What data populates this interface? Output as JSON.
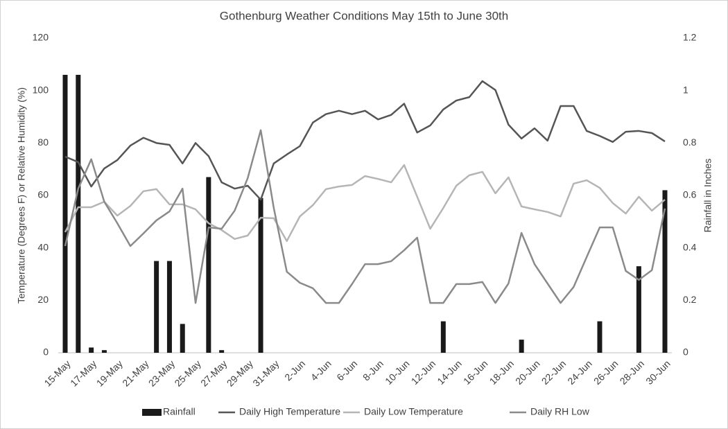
{
  "chart_data": {
    "type": "bar-line",
    "title": "Gothenburg Weather Conditions May 15th to June 30th",
    "ylabel": "Temperature (Degrees F) or Relative Humidity (%)",
    "y2label": "Rainfall in Inches",
    "categories": [
      "15-May",
      null,
      "17-May",
      null,
      "19-May",
      null,
      "21-May",
      null,
      "23-May",
      null,
      "25-May",
      null,
      "27-May",
      null,
      "29-May",
      null,
      "31-May",
      null,
      "2-Jun",
      null,
      "4-Jun",
      null,
      "6-Jun",
      null,
      "8-Jun",
      null,
      "10-Jun",
      null,
      "12-Jun",
      null,
      "14-Jun",
      null,
      "16-Jun",
      null,
      "18-Jun",
      null,
      "20-Jun",
      null,
      "22-Jun",
      null,
      "24-Jun",
      null,
      "26-Jun",
      null,
      "28-Jun",
      null,
      "30-Jun"
    ],
    "series": [
      {
        "name": "Rainfall",
        "type": "bar",
        "axis": "y2",
        "color": "#1a1a1a",
        "values": [
          1.06,
          1.06,
          0.02,
          0.01,
          0,
          0,
          0,
          0.35,
          0.35,
          0.11,
          0,
          0.67,
          0.01,
          0,
          0,
          0.59,
          0,
          0,
          0,
          0,
          0,
          0,
          0,
          0,
          0,
          0,
          0,
          0,
          0,
          0.12,
          0,
          0,
          0,
          0,
          0,
          0.05,
          0,
          0,
          0,
          0,
          0,
          0.12,
          0,
          0,
          0.33,
          0,
          0.62
        ]
      },
      {
        "name": "Daily High Temperature",
        "type": "line",
        "color": "#555555",
        "values": [
          74.8,
          72.7,
          63.4,
          70.3,
          73.5,
          79,
          82,
          80,
          79.3,
          72.2,
          80,
          75,
          65,
          62.6,
          63.7,
          58.4,
          72.2,
          75.6,
          78.8,
          87.8,
          91,
          92.3,
          91,
          92.3,
          89,
          90.7,
          95,
          84,
          86.7,
          92.8,
          96.2,
          97.5,
          103.6,
          100.2,
          87,
          81.7,
          85.6,
          80.9,
          94.1,
          94.1,
          84.6,
          82.7,
          80.4,
          84.3,
          84.6,
          83.8,
          80.6
        ]
      },
      {
        "name": "Daily Low Temperature",
        "type": "line",
        "color": "#b5b5b5",
        "values": [
          46,
          55.5,
          55.5,
          57.6,
          52.3,
          56,
          61.6,
          62.4,
          56.6,
          56.6,
          54.7,
          49.4,
          46.8,
          43.4,
          44.7,
          51.5,
          51.3,
          42.6,
          52,
          56.3,
          62.4,
          63.4,
          64,
          67.4,
          66.3,
          65,
          71.6,
          59.5,
          47.3,
          55.2,
          63.7,
          67.7,
          69,
          60.8,
          66.9,
          55.8,
          54.7,
          53.7,
          52,
          64.5,
          65.8,
          62.9,
          57.1,
          53.1,
          59.5,
          54.2,
          58.4
        ]
      },
      {
        "name": "Daily RH Low",
        "type": "line",
        "color": "#8a8a8a",
        "values": [
          40.7,
          62.6,
          73.8,
          57.6,
          49.4,
          40.7,
          45.5,
          50.5,
          53.9,
          62.6,
          19,
          47.8,
          47.3,
          54.2,
          66.6,
          84.9,
          55.2,
          30.9,
          26.7,
          24.6,
          19,
          19,
          26.2,
          33.8,
          33.8,
          34.9,
          39.1,
          43.9,
          19,
          19,
          26.2,
          26.2,
          27,
          19,
          26.4,
          45.7,
          33.8,
          26.4,
          19,
          25.1,
          36.5,
          47.8,
          47.8,
          31.2,
          27.8,
          31.5,
          55
        ]
      }
    ],
    "ylim": [
      0,
      120
    ],
    "yticks": [
      0,
      20,
      40,
      60,
      80,
      100,
      120
    ],
    "y2lim": [
      0,
      1.2
    ],
    "y2ticks": [
      0,
      0.2,
      0.4,
      0.6,
      0.8,
      1,
      1.2
    ],
    "grid": false,
    "legend": "bottom"
  }
}
